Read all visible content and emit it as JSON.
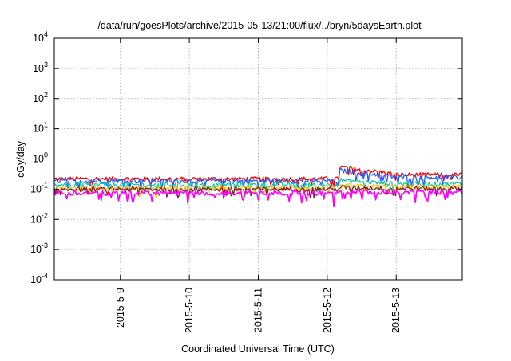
{
  "chart_data": {
    "type": "line",
    "title": "/data/run/goesPlots/archive/2015-05-13/21:00/flux/../bryn/5daysEarth.plot",
    "xlabel": "Coordinated Universal Time (UTC)",
    "ylabel": "cGy/day",
    "yscale": "log",
    "ylim": [
      0.0001,
      10000
    ],
    "y_ticks": [
      {
        "value": 0.0001,
        "base": "10",
        "exp": "-4"
      },
      {
        "value": 0.001,
        "base": "10",
        "exp": "-3"
      },
      {
        "value": 0.01,
        "base": "10",
        "exp": "-2"
      },
      {
        "value": 0.1,
        "base": "10",
        "exp": "-1"
      },
      {
        "value": 1,
        "base": "10",
        "exp": "0"
      },
      {
        "value": 10,
        "base": "10",
        "exp": "1"
      },
      {
        "value": 100,
        "base": "10",
        "exp": "2"
      },
      {
        "value": 1000,
        "base": "10",
        "exp": "3"
      },
      {
        "value": 10000,
        "base": "10",
        "exp": "4"
      }
    ],
    "x_range_days": [
      "2015-05-08 01:00",
      "2015-05-13 23:00"
    ],
    "x_ticks": [
      "2015-5-9",
      "2015-5-10",
      "2015-5-11",
      "2015-5-12",
      "2015-5-13"
    ],
    "grid": true,
    "legend": "none",
    "series": [
      {
        "color": "#ff0000",
        "base_before": 0.22,
        "base_after": 0.55,
        "base_end": 0.3,
        "step_at": "2015-05-12 04:00",
        "decay_to": "2015-05-13 00:00"
      },
      {
        "color": "#1f5bff",
        "base_before": 0.19,
        "base_after": 0.42,
        "base_end": 0.25,
        "step_at": "2015-05-12 04:00",
        "decay_to": "2015-05-13 00:00"
      },
      {
        "color": "#19c6a6",
        "base_before": 0.14,
        "base_after": 0.2,
        "base_end": 0.15,
        "step_at": "2015-05-12 04:00",
        "decay_to": "2015-05-13 00:00"
      },
      {
        "color": "#f0c419",
        "base_before": 0.11,
        "base_after": 0.13,
        "base_end": 0.12,
        "step_at": "2015-05-12 04:00",
        "decay_to": "2015-05-13 00:00"
      },
      {
        "color": "#8b1a1a",
        "base_before": 0.1,
        "base_after": 0.115,
        "base_end": 0.105,
        "step_at": "2015-05-12 04:00",
        "decay_to": "2015-05-13 00:00"
      },
      {
        "color": "#ff00ff",
        "base_before": 0.075,
        "base_after": 0.085,
        "base_end": 0.08,
        "step_at": "2015-05-12 04:00",
        "decay_to": "2015-05-13 00:00"
      }
    ]
  }
}
